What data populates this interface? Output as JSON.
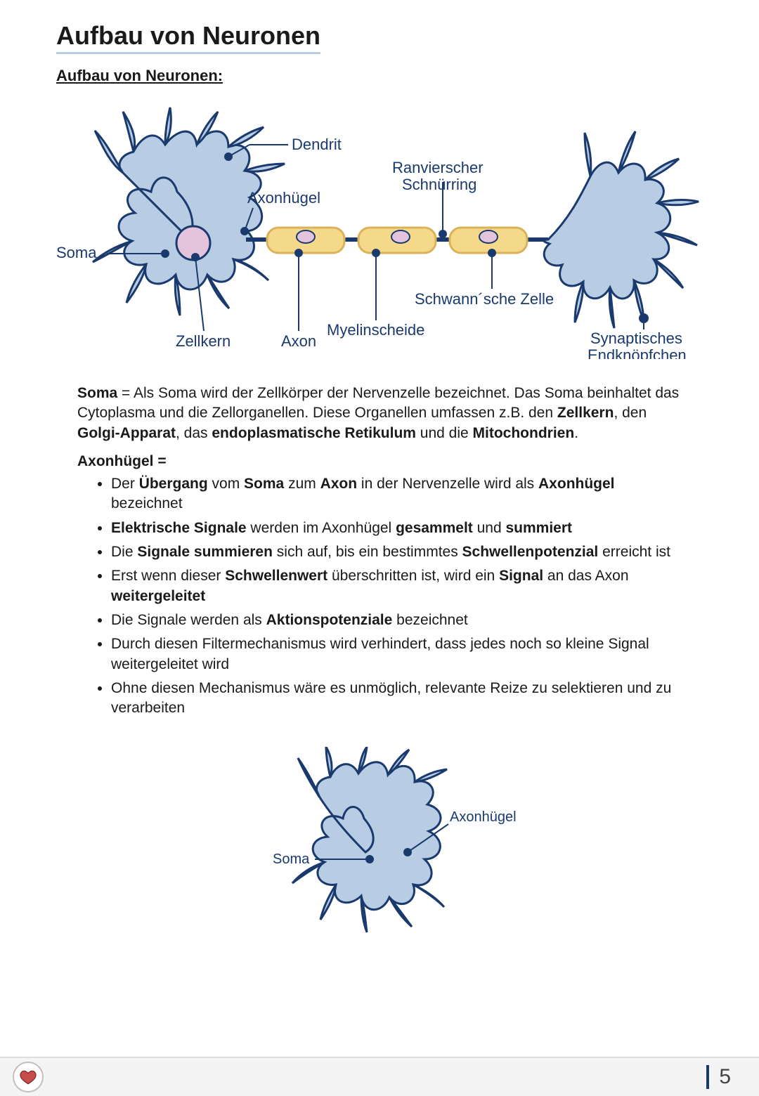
{
  "title": "Aufbau von Neuronen",
  "subtitle": "Aufbau von Neuronen:",
  "diagram": {
    "colors": {
      "neuron_fill": "#b8cce4",
      "neuron_stroke": "#1a3a6e",
      "nucleus_fill": "#e4c4dd",
      "nucleus_stroke": "#1a3a6e",
      "schwann_fill": "#f5d98a",
      "schwann_stroke": "#d9b25a",
      "schwann_nucleus_fill": "#e4c4dd",
      "axon_stroke": "#1a3a6e",
      "label_color": "#1a3a6e",
      "pointer_stroke": "#1a3a6e",
      "pointer_dot": "#1a3a6e"
    },
    "label_fontsize": 22,
    "labels": {
      "dendrit": "Dendrit",
      "axonhuegel": "Axonhügel",
      "ranvier": "Ranvierscher Schnürring",
      "soma": "Soma",
      "zellkern": "Zellkern",
      "axon": "Axon",
      "myelin": "Myelinscheide",
      "schwann": "Schwann´sche Zelle",
      "synapse": "Synaptisches Endknöpfchen"
    }
  },
  "soma_para": "<b>Soma</b> = Als Soma wird der Zellkörper der Nervenzelle bezeichnet. Das Soma beinhaltet das Cytoplasma und die Zellorganellen. Diese Organellen umfassen z.B. den <b>Zellkern</b>, den <b>Golgi-Apparat</b>, das <b>endoplasmatische Retikulum</b> und die <b>Mitochondrien</b>.",
  "axonhuegel_head": "Axonhügel =",
  "bullets": [
    "Der <b>Übergang</b> vom <b>Soma</b> zum <b>Axon</b> in der Nervenzelle wird als <b>Axonhügel</b> bezeichnet",
    "<b>Elektrische Signale</b> werden im Axonhügel <b>gesammelt</b> und <b>summiert</b>",
    "Die <b>Signale summieren</b> sich auf, bis ein bestimmtes <b>Schwellenpotenzial</b> erreicht ist",
    "Erst wenn dieser <b>Schwellenwert</b> überschritten ist, wird ein <b>Signal</b> an das Axon <b>weitergeleitet</b>",
    "Die Signale werden als <b>Aktionspotenziale</b> bezeichnet",
    "Durch diesen Filtermechanismus wird verhindert, dass jedes noch so kleine Signal weitergeleitet wird",
    "Ohne diesen Mechanismus wäre es unmöglich, relevante Reize zu selektieren und zu verarbeiten"
  ],
  "small_diagram_labels": {
    "soma": "Soma",
    "axonhuegel": "Axonhügel"
  },
  "page_number": "5"
}
